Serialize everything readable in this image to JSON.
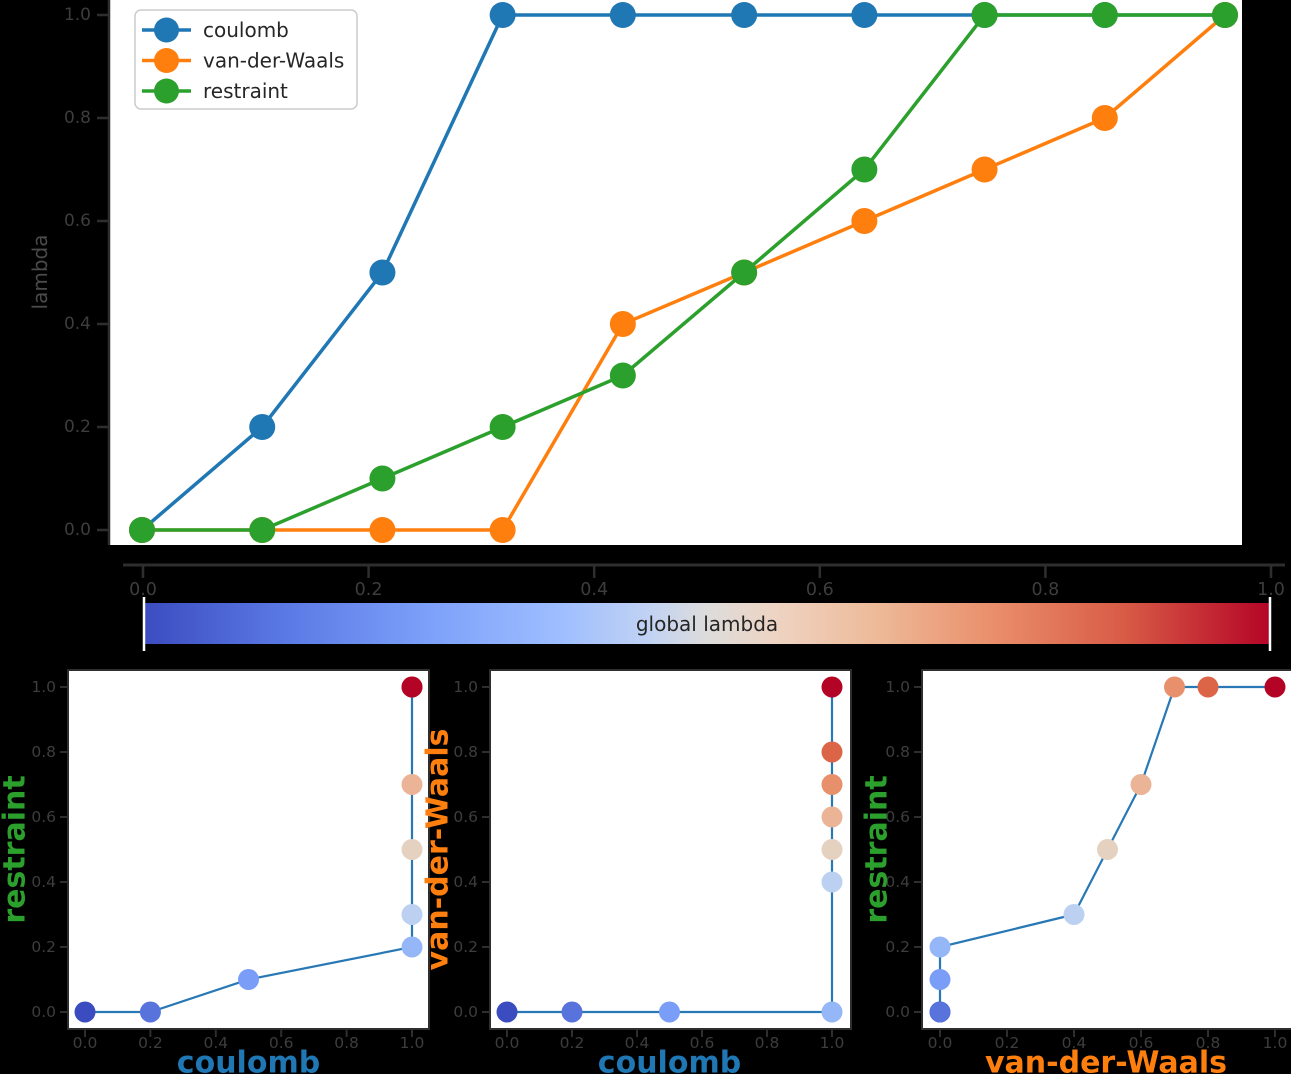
{
  "figure": {
    "background": "#000000",
    "plot_background": "#ffffff",
    "spine_color": "#2e2e2e",
    "tick_label_color": "#3d3d3d",
    "axis_label_color": "#4a4a4a"
  },
  "legend": {
    "background": "#ffffff",
    "border_color": "#cccccc",
    "text_color": "#262626",
    "entries": [
      {
        "label": "coulomb",
        "color": "#1f77b4"
      },
      {
        "label": "van-der-Waals",
        "color": "#ff7f0e"
      },
      {
        "label": "restraint",
        "color": "#2ca02c"
      }
    ]
  },
  "global_lambda_colors": [
    "#3b4cc0",
    "#5873db",
    "#7a9df8",
    "#95b7f7",
    "#bcd1f1",
    "#e5d1c0",
    "#ecb496",
    "#e8906c",
    "#dc6547",
    "#b40426"
  ],
  "chart_data": [
    {
      "id": "lambda-schedule",
      "type": "line",
      "title": "",
      "xlabel": "",
      "ylabel": "lambda",
      "xlim": [
        0,
        1
      ],
      "ylim": [
        0,
        1
      ],
      "grid": false,
      "legend_position": "upper left",
      "x": [
        0.0,
        0.111,
        0.222,
        0.333,
        0.444,
        0.556,
        0.667,
        0.778,
        0.889,
        1.0
      ],
      "series": [
        {
          "name": "coulomb",
          "color": "#1f77b4",
          "values": [
            0.0,
            0.2,
            0.5,
            1.0,
            1.0,
            1.0,
            1.0,
            1.0,
            1.0,
            1.0
          ]
        },
        {
          "name": "van-der-Waals",
          "color": "#ff7f0e",
          "values": [
            0.0,
            0.0,
            0.0,
            0.0,
            0.4,
            0.5,
            0.6,
            0.7,
            0.8,
            1.0
          ]
        },
        {
          "name": "restraint",
          "color": "#2ca02c",
          "values": [
            0.0,
            0.0,
            0.1,
            0.2,
            0.3,
            0.5,
            0.7,
            1.0,
            1.0,
            1.0
          ]
        }
      ],
      "yticks": [
        "0.0",
        "0.2",
        "0.4",
        "0.6",
        "0.8",
        "1.0"
      ]
    },
    {
      "id": "global-lambda-colorbar",
      "type": "colorbar",
      "label": "global lambda",
      "label_color": "#262626",
      "range": [
        0,
        1
      ],
      "ticks": [
        "0.0",
        "0.2",
        "0.4",
        "0.6",
        "0.8",
        "1.0"
      ],
      "cmap": "coolwarm",
      "cmap_stops": [
        {
          "offset": 0.0,
          "color": "#3b4cc0"
        },
        {
          "offset": 0.12,
          "color": "#5977e3"
        },
        {
          "offset": 0.25,
          "color": "#7c9ff9"
        },
        {
          "offset": 0.37,
          "color": "#9ebeff"
        },
        {
          "offset": 0.45,
          "color": "#c2d3f3"
        },
        {
          "offset": 0.5,
          "color": "#dddcdb"
        },
        {
          "offset": 0.56,
          "color": "#eed4c3"
        },
        {
          "offset": 0.65,
          "color": "#edba99"
        },
        {
          "offset": 0.75,
          "color": "#ea906c"
        },
        {
          "offset": 0.87,
          "color": "#d85b46"
        },
        {
          "offset": 1.0,
          "color": "#b40426"
        }
      ]
    },
    {
      "id": "restraint-vs-coulomb",
      "type": "scatter",
      "xlabel": "coulomb",
      "ylabel": "restraint",
      "xlabel_color": "#1f77b4",
      "ylabel_color": "#2ca02c",
      "line_color": "#2878b5",
      "xlim": [
        0,
        1
      ],
      "ylim": [
        0,
        1
      ],
      "xticks": [
        "0.0",
        "0.2",
        "0.4",
        "0.6",
        "0.8",
        "1.0"
      ],
      "yticks": [
        "0.0",
        "0.2",
        "0.4",
        "0.6",
        "0.8",
        "1.0"
      ],
      "points": [
        {
          "x": 0.0,
          "y": 0.0,
          "c": "#3b4cc0"
        },
        {
          "x": 0.2,
          "y": 0.0,
          "c": "#5873db"
        },
        {
          "x": 0.5,
          "y": 0.1,
          "c": "#7a9df8"
        },
        {
          "x": 1.0,
          "y": 0.2,
          "c": "#95b7f7"
        },
        {
          "x": 1.0,
          "y": 0.3,
          "c": "#bcd1f1"
        },
        {
          "x": 1.0,
          "y": 0.5,
          "c": "#e5d1c0"
        },
        {
          "x": 1.0,
          "y": 0.7,
          "c": "#ecb496"
        },
        {
          "x": 1.0,
          "y": 1.0,
          "c": "#e8906c"
        },
        {
          "x": 1.0,
          "y": 1.0,
          "c": "#dc6547"
        },
        {
          "x": 1.0,
          "y": 1.0,
          "c": "#b40426"
        }
      ]
    },
    {
      "id": "van-der-waals-vs-coulomb",
      "type": "scatter",
      "xlabel": "coulomb",
      "ylabel": "van-der-Waals",
      "xlabel_color": "#1f77b4",
      "ylabel_color": "#ff7f0e",
      "line_color": "#2878b5",
      "xlim": [
        0,
        1
      ],
      "ylim": [
        0,
        1
      ],
      "xticks": [
        "0.0",
        "0.2",
        "0.4",
        "0.6",
        "0.8",
        "1.0"
      ],
      "yticks": [
        "0.0",
        "0.2",
        "0.4",
        "0.6",
        "0.8",
        "1.0"
      ],
      "points": [
        {
          "x": 0.0,
          "y": 0.0,
          "c": "#3b4cc0"
        },
        {
          "x": 0.2,
          "y": 0.0,
          "c": "#5873db"
        },
        {
          "x": 0.5,
          "y": 0.0,
          "c": "#7a9df8"
        },
        {
          "x": 1.0,
          "y": 0.0,
          "c": "#95b7f7"
        },
        {
          "x": 1.0,
          "y": 0.4,
          "c": "#bcd1f1"
        },
        {
          "x": 1.0,
          "y": 0.5,
          "c": "#e5d1c0"
        },
        {
          "x": 1.0,
          "y": 0.6,
          "c": "#ecb496"
        },
        {
          "x": 1.0,
          "y": 0.7,
          "c": "#e8906c"
        },
        {
          "x": 1.0,
          "y": 0.8,
          "c": "#dc6547"
        },
        {
          "x": 1.0,
          "y": 1.0,
          "c": "#b40426"
        }
      ]
    },
    {
      "id": "restraint-vs-van-der-waals",
      "type": "scatter",
      "xlabel": "van-der-Waals",
      "ylabel": "restraint",
      "xlabel_color": "#ff7f0e",
      "ylabel_color": "#2ca02c",
      "line_color": "#2878b5",
      "xlim": [
        0,
        1
      ],
      "ylim": [
        0,
        1
      ],
      "xticks": [
        "0.0",
        "0.2",
        "0.4",
        "0.6",
        "0.8",
        "1.0"
      ],
      "yticks": [
        "0.0",
        "0.2",
        "0.4",
        "0.6",
        "0.8",
        "1.0"
      ],
      "points": [
        {
          "x": 0.0,
          "y": 0.0,
          "c": "#3b4cc0"
        },
        {
          "x": 0.0,
          "y": 0.0,
          "c": "#5873db"
        },
        {
          "x": 0.0,
          "y": 0.1,
          "c": "#7a9df8"
        },
        {
          "x": 0.0,
          "y": 0.2,
          "c": "#95b7f7"
        },
        {
          "x": 0.4,
          "y": 0.3,
          "c": "#bcd1f1"
        },
        {
          "x": 0.5,
          "y": 0.5,
          "c": "#e5d1c0"
        },
        {
          "x": 0.6,
          "y": 0.7,
          "c": "#ecb496"
        },
        {
          "x": 0.7,
          "y": 1.0,
          "c": "#e8906c"
        },
        {
          "x": 0.8,
          "y": 1.0,
          "c": "#dc6547"
        },
        {
          "x": 1.0,
          "y": 1.0,
          "c": "#b40426"
        }
      ]
    }
  ]
}
